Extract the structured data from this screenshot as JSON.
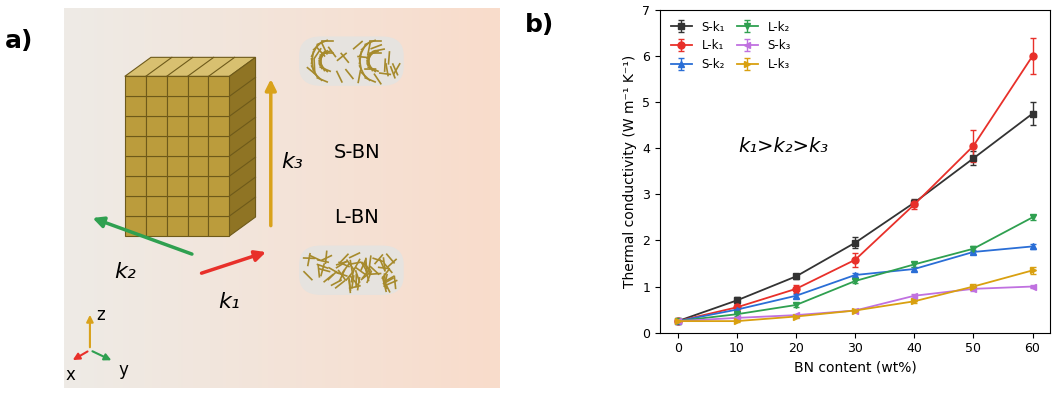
{
  "diagram": {
    "panel_label": "a)",
    "arrows": [
      {
        "label": "k₁",
        "color": "#e8302a"
      },
      {
        "label": "k₂",
        "color": "#2fa050"
      },
      {
        "label": "k₃",
        "color": "#d9a21b"
      }
    ],
    "samples": [
      "S-BN",
      "L-BN"
    ],
    "axes_icon": [
      {
        "label": "x",
        "color": "#e8302a"
      },
      {
        "label": "y",
        "color": "#2fa050"
      },
      {
        "label": "z",
        "color": "#d9a21b"
      }
    ]
  },
  "chart_data": {
    "type": "line",
    "panel_label": "b)",
    "x_label": "BN content (wt%)",
    "y_label": "Thermal conductivity (W m⁻¹ K⁻¹)",
    "annotation": "k₁>k₂>k₃",
    "x": [
      0,
      10,
      20,
      30,
      40,
      50,
      60
    ],
    "xlim": [
      -3,
      63
    ],
    "xticks": [
      0,
      10,
      20,
      30,
      40,
      50,
      60
    ],
    "ylim": [
      0,
      7
    ],
    "yticks": [
      0,
      1,
      2,
      3,
      4,
      5,
      6,
      7
    ],
    "legend": "upper left",
    "grid": false,
    "series": [
      {
        "name": "S-k₁",
        "color": "#333333",
        "marker": "square",
        "line_style": "solid",
        "values": [
          0.25,
          0.7,
          1.22,
          1.95,
          2.82,
          3.78,
          4.75
        ],
        "errors": [
          0.03,
          0.08,
          0.06,
          0.12,
          0.08,
          0.15,
          0.25
        ]
      },
      {
        "name": "L-k₁",
        "color": "#e8302a",
        "marker": "circle",
        "line_style": "solid",
        "values": [
          0.25,
          0.55,
          0.95,
          1.58,
          2.78,
          4.05,
          6.0
        ],
        "errors": [
          0.03,
          0.05,
          0.08,
          0.15,
          0.1,
          0.35,
          0.38
        ]
      },
      {
        "name": "S-k₂",
        "color": "#2a6ed6",
        "marker": "triangle_up",
        "line_style": "solid",
        "values": [
          0.25,
          0.5,
          0.8,
          1.25,
          1.38,
          1.75,
          1.87
        ],
        "errors": [
          0.02,
          0.03,
          0.04,
          0.05,
          0.04,
          0.05,
          0.05
        ]
      },
      {
        "name": "L-k₂",
        "color": "#2fa050",
        "marker": "triangle_down",
        "line_style": "solid",
        "values": [
          0.25,
          0.4,
          0.6,
          1.12,
          1.48,
          1.82,
          2.5
        ],
        "errors": [
          0.02,
          0.03,
          0.04,
          0.05,
          0.05,
          0.06,
          0.06
        ]
      },
      {
        "name": "S-k₃",
        "color": "#c071e0",
        "marker": "triangle_left",
        "line_style": "solid",
        "values": [
          0.25,
          0.32,
          0.38,
          0.48,
          0.8,
          0.95,
          1.0
        ],
        "errors": [
          0.02,
          0.02,
          0.03,
          0.03,
          0.04,
          0.04,
          0.04
        ]
      },
      {
        "name": "L-k₃",
        "color": "#d9a010",
        "marker": "triangle_right",
        "line_style": "solid",
        "values": [
          0.25,
          0.25,
          0.35,
          0.48,
          0.68,
          1.0,
          1.35
        ],
        "errors": [
          0.02,
          0.02,
          0.03,
          0.03,
          0.04,
          0.05,
          0.08
        ]
      }
    ]
  }
}
